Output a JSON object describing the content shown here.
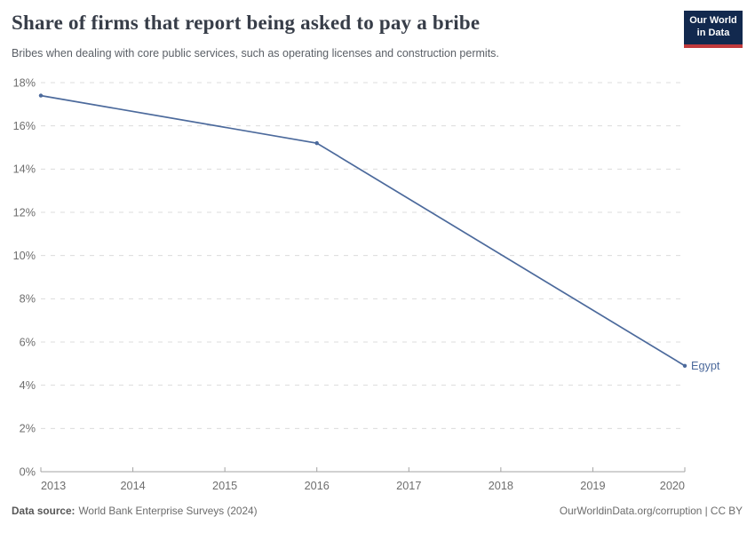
{
  "header": {
    "title": "Share of firms that report being asked to pay a bribe",
    "subtitle": "Bribes when dealing with core public services, such as operating licenses and construction permits."
  },
  "logo": {
    "line1": "Our World",
    "line2": "in Data"
  },
  "chart_data": {
    "type": "line",
    "title": "Share of firms that report being asked to pay a bribe",
    "series": [
      {
        "name": "Egypt",
        "x": [
          2013,
          2016,
          2020
        ],
        "y": [
          17.4,
          15.2,
          4.9
        ],
        "color": "#4C6A9C"
      }
    ],
    "xlim": [
      2013,
      2020
    ],
    "ylim": [
      0,
      18
    ],
    "xticks": [
      2013,
      2014,
      2015,
      2016,
      2017,
      2018,
      2019,
      2020
    ],
    "yticks": [
      0,
      2,
      4,
      6,
      8,
      10,
      12,
      14,
      16,
      18
    ],
    "ytick_suffix": "%",
    "grid": "horizontal-dashed",
    "legend": "end-of-line-label",
    "colors": {
      "grid": "#dcdcdc",
      "axis": "#a3a3a3",
      "tick_text": "#6e6e6e"
    }
  },
  "footer": {
    "source_label": "Data source:",
    "source_value": "World Bank Enterprise Surveys (2024)",
    "credit": "OurWorldinData.org/corruption | CC BY"
  }
}
